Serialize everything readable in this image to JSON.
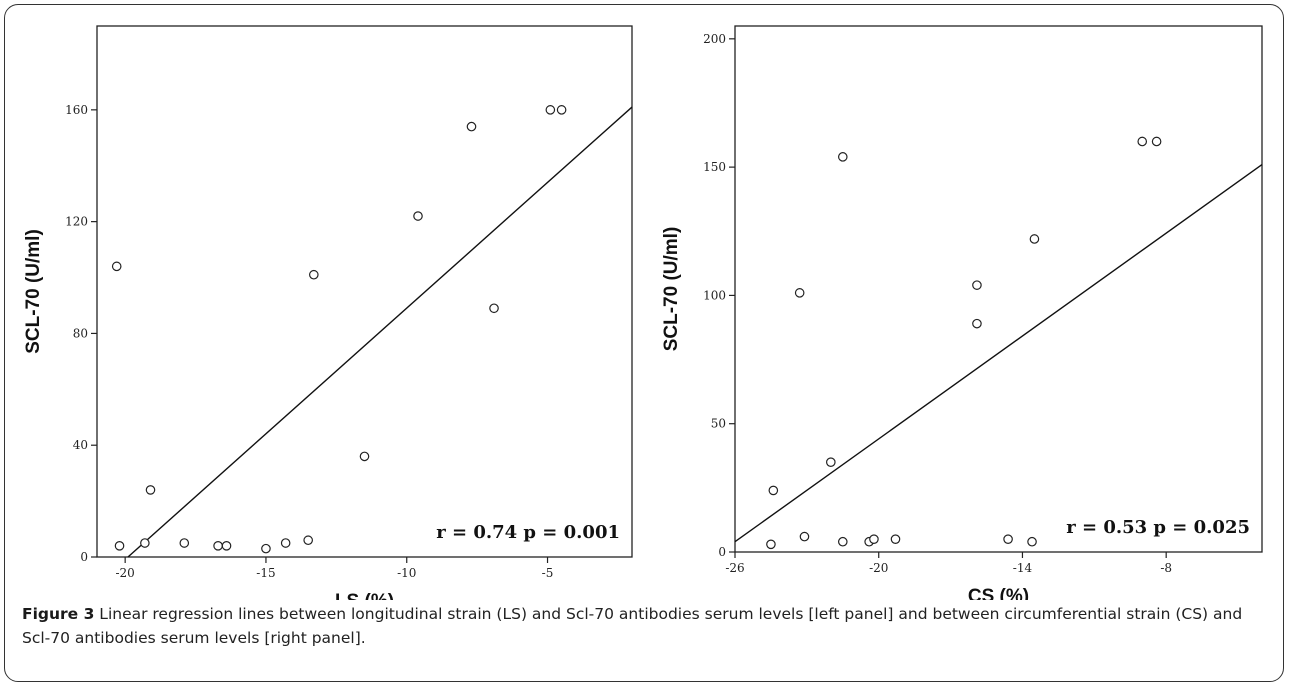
{
  "caption": {
    "label": "Figure 3",
    "text": " Linear regression lines between longitudinal strain (LS) and Scl-70 antibodies serum levels [left panel] and between circumferential strain (CS) and Scl-70 antibodies serum levels [right panel]."
  },
  "chart_data": [
    {
      "type": "scatter",
      "xlabel": "LS (%)",
      "ylabel": "SCL-70 (U/ml)",
      "xlim": [
        -21,
        -2
      ],
      "ylim": [
        0,
        190
      ],
      "xticks": [
        -20,
        -15,
        -10,
        -5
      ],
      "yticks": [
        0,
        40,
        80,
        120,
        160
      ],
      "annotation": "r = 0.74 p =  0.001",
      "grid": false,
      "points": [
        {
          "x": -20.3,
          "y": 104
        },
        {
          "x": -20.2,
          "y": 4
        },
        {
          "x": -19.3,
          "y": 5
        },
        {
          "x": -19.1,
          "y": 24
        },
        {
          "x": -17.9,
          "y": 5
        },
        {
          "x": -16.7,
          "y": 4
        },
        {
          "x": -16.4,
          "y": 4
        },
        {
          "x": -15.0,
          "y": 3
        },
        {
          "x": -14.3,
          "y": 5
        },
        {
          "x": -13.5,
          "y": 6
        },
        {
          "x": -13.3,
          "y": 101
        },
        {
          "x": -11.5,
          "y": 36
        },
        {
          "x": -9.6,
          "y": 122
        },
        {
          "x": -7.7,
          "y": 154
        },
        {
          "x": -6.9,
          "y": 89
        },
        {
          "x": -4.9,
          "y": 160
        },
        {
          "x": -4.5,
          "y": 160
        }
      ],
      "fit_line": {
        "x": [
          -19.9,
          -2
        ],
        "y": [
          0,
          161
        ]
      }
    },
    {
      "type": "scatter",
      "xlabel": "CS (%)",
      "ylabel": "SCL-70 (U/ml)",
      "xlim": [
        -26,
        -4
      ],
      "ylim": [
        0,
        205
      ],
      "xticks": [
        -26,
        -20,
        -14,
        -8
      ],
      "yticks": [
        0,
        50,
        100,
        150,
        200
      ],
      "annotation": "r = 0.53 p =  0.025",
      "grid": false,
      "points": [
        {
          "x": -24.5,
          "y": 3
        },
        {
          "x": -24.4,
          "y": 24
        },
        {
          "x": -23.3,
          "y": 101
        },
        {
          "x": -23.1,
          "y": 6
        },
        {
          "x": -22.0,
          "y": 35
        },
        {
          "x": -21.5,
          "y": 154
        },
        {
          "x": -21.5,
          "y": 4
        },
        {
          "x": -20.4,
          "y": 4
        },
        {
          "x": -20.2,
          "y": 5
        },
        {
          "x": -19.3,
          "y": 5
        },
        {
          "x": -15.9,
          "y": 104
        },
        {
          "x": -15.9,
          "y": 89
        },
        {
          "x": -14.6,
          "y": 5
        },
        {
          "x": -13.6,
          "y": 4
        },
        {
          "x": -13.5,
          "y": 122
        },
        {
          "x": -9.0,
          "y": 160
        },
        {
          "x": -8.4,
          "y": 160
        }
      ],
      "fit_line": {
        "x": [
          -26,
          -4
        ],
        "y": [
          4,
          151
        ]
      }
    }
  ]
}
